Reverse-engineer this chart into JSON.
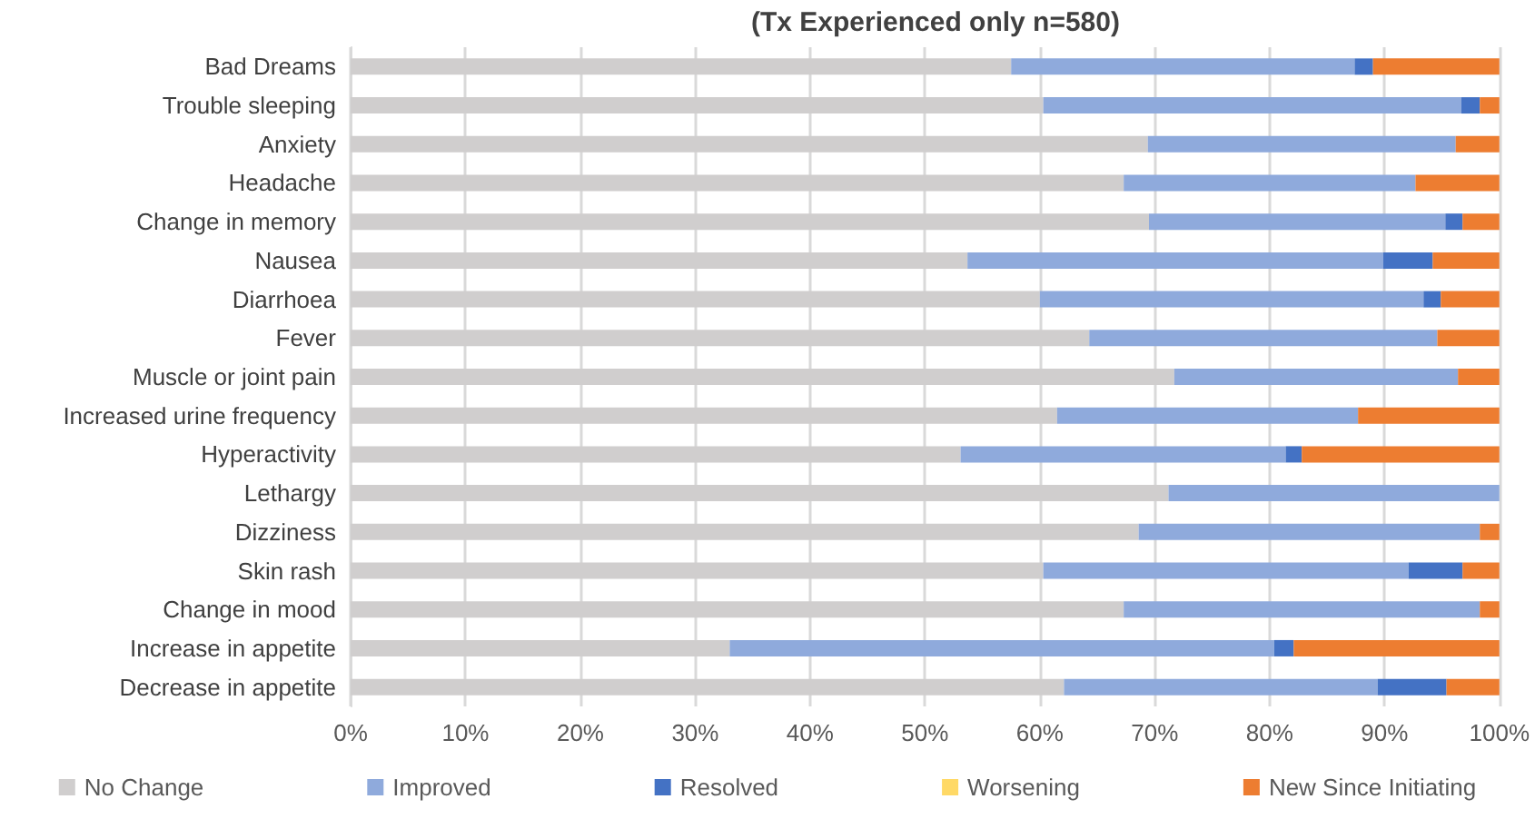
{
  "chart_data": {
    "type": "bar",
    "title": "(Tx Experienced only n=580)",
    "orientation": "horizontal",
    "stacked": true,
    "grid": "x",
    "legend": "bottom",
    "categories": [
      "Bad Dreams",
      "Trouble sleeping",
      "Anxiety",
      "Headache",
      "Change in memory",
      "Nausea",
      "Diarrhoea",
      "Fever",
      "Muscle or joint pain",
      "Increased urine frequency",
      "Hyperactivity",
      "Lethargy",
      "Dizziness",
      "Skin rash",
      "Change in mood",
      "Increase in appetite",
      "Decrease in appetite"
    ],
    "xlim": [
      0,
      100
    ],
    "xticks": [
      {
        "value": 0,
        "label": "0%"
      },
      {
        "value": 10,
        "label": "10%"
      },
      {
        "value": 20,
        "label": "20%"
      },
      {
        "value": 30,
        "label": "30%"
      },
      {
        "value": 40,
        "label": "40%"
      },
      {
        "value": 50,
        "label": "50%"
      },
      {
        "value": 60,
        "label": "60%"
      },
      {
        "value": 70,
        "label": "70%"
      },
      {
        "value": 80,
        "label": "80%"
      },
      {
        "value": 90,
        "label": "90%"
      },
      {
        "value": 100,
        "label": "100%"
      }
    ],
    "series": [
      {
        "name": "No Change",
        "color": "#d0cece",
        "values": [
          57.5,
          60.3,
          69.4,
          67.3,
          69.5,
          53.7,
          60.0,
          64.3,
          71.7,
          61.5,
          53.1,
          71.2,
          68.6,
          60.3,
          67.3,
          33.0,
          62.1
        ]
      },
      {
        "name": "Improved",
        "color": "#8faadc",
        "values": [
          29.9,
          36.4,
          26.8,
          25.4,
          25.8,
          36.2,
          33.4,
          30.3,
          24.7,
          26.2,
          28.3,
          28.8,
          29.7,
          31.8,
          31.0,
          47.4,
          27.3
        ]
      },
      {
        "name": "Resolved",
        "color": "#4472c4",
        "values": [
          1.6,
          1.6,
          0,
          0,
          1.5,
          4.3,
          1.5,
          0,
          0,
          0,
          1.4,
          0,
          0,
          4.7,
          0,
          1.7,
          6.0
        ]
      },
      {
        "name": "Worsening",
        "color": "#ffd966",
        "values": [
          0,
          0,
          0,
          0,
          0,
          0,
          0,
          0,
          0,
          0,
          0,
          0,
          0,
          0,
          0,
          0,
          0
        ]
      },
      {
        "name": "New Since Initiating",
        "color": "#ed7d31",
        "values": [
          11.0,
          1.7,
          3.8,
          7.3,
          3.2,
          5.8,
          5.1,
          5.4,
          3.6,
          12.3,
          17.2,
          0,
          1.7,
          3.2,
          1.7,
          17.9,
          4.6
        ]
      }
    ]
  }
}
